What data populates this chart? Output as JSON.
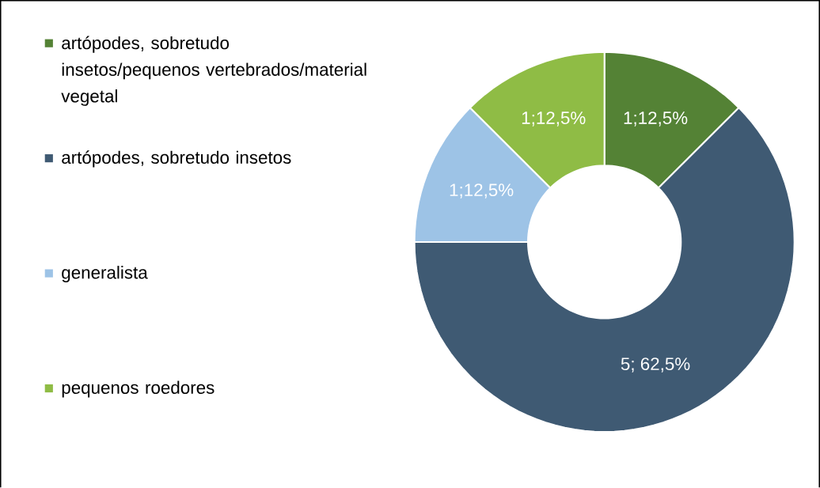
{
  "chart_data": {
    "type": "donut",
    "categories": [
      "artópodes, sobretudo insetos/pequenos vertebrados/material vegetal",
      "artópodes, sobretudo insetos",
      "generalista",
      "pequenos roedores"
    ],
    "values": [
      1,
      5,
      1,
      1
    ],
    "colors": [
      "#548235",
      "#3f5a73",
      "#9dc3e6",
      "#8fbc45"
    ],
    "value_labels": [
      "1;12,5%",
      "5; 62,5%",
      "1;12,5%",
      "1;12,5%"
    ],
    "legend": "left"
  }
}
